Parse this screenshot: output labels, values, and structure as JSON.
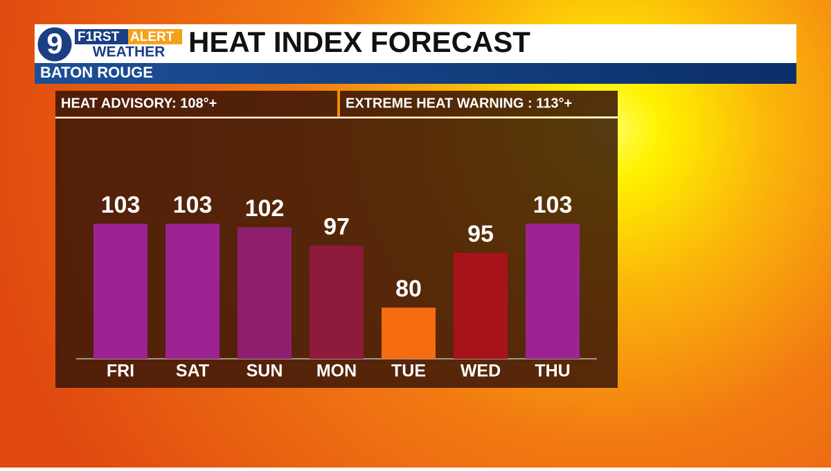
{
  "logo": {
    "channel": "9",
    "brand": "F1RST",
    "brand_accent": "ALERT",
    "product": "WEATHER"
  },
  "chart_data": {
    "type": "bar",
    "title": "HEAT INDEX FORECAST",
    "subtitle": "BATON ROUGE",
    "annotations": [
      "HEAT ADVISORY: 108°+",
      "EXTREME HEAT WARNING : 113°+"
    ],
    "categories": [
      "FRI",
      "SAT",
      "SUN",
      "MON",
      "TUE",
      "WED",
      "THU"
    ],
    "values": [
      103,
      103,
      102,
      97,
      80,
      95,
      103
    ],
    "colors": [
      "#9b2392",
      "#9b2392",
      "#8f1f6e",
      "#8e1a3c",
      "#f56d10",
      "#a8131a",
      "#9b2392"
    ],
    "ylim": [
      66,
      132
    ]
  }
}
